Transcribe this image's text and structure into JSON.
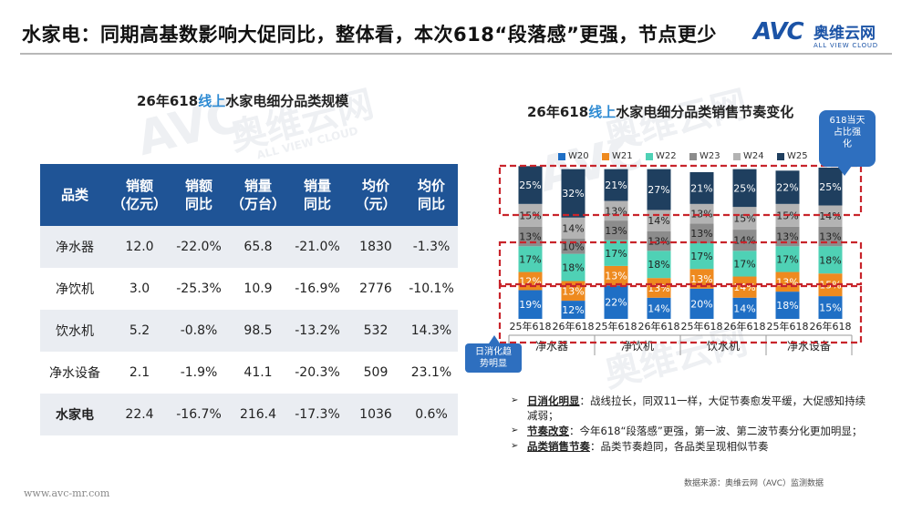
{
  "header": {
    "title": "水家电：同期高基数影响大促同比，整体看，本次618“段落感”更强，节点更少",
    "logo_mark": "AVC",
    "logo_cn": "奥维云网",
    "logo_en": "ALL VIEW CLOUD"
  },
  "watermark": {
    "mark": "AVC",
    "cn": "奥维云网",
    "en": "ALL VIEW CLOUD"
  },
  "colors": {
    "header_blue": "#1f5496",
    "accent_blue": "#2e8bd3",
    "dash_red": "#c8242b"
  },
  "left": {
    "title_pre": "26年618",
    "title_hl": "线上",
    "title_post": "水家电细分品类规模",
    "columns": [
      "品类",
      "销额\n（亿元）",
      "销额\n同比",
      "销量\n（万台）",
      "销量\n同比",
      "均价（元）",
      "均价\n同比"
    ],
    "rows": [
      [
        "净水器",
        "12.0",
        "-22.0%",
        "65.8",
        "-21.0%",
        "1830",
        "-1.3%"
      ],
      [
        "净饮机",
        "3.0",
        "-25.3%",
        "10.9",
        "-16.9%",
        "2776",
        "-10.1%"
      ],
      [
        "饮水机",
        "5.2",
        "-0.8%",
        "98.5",
        "-13.2%",
        "532",
        "14.3%"
      ],
      [
        "净水设备",
        "2.1",
        "-1.9%",
        "41.1",
        "-20.3%",
        "509",
        "23.1%"
      ],
      [
        "水家电",
        "22.4",
        "-16.7%",
        "216.4",
        "-17.3%",
        "1036",
        "0.6%"
      ]
    ]
  },
  "footer_url": "www.avc-mr.com",
  "right": {
    "title_pre": "26年618",
    "title_hl": "线上",
    "title_post": "水家电细分品类销售节奏变化",
    "callout_top": "618当天\n占比强\n化",
    "callout_bottom": "日消化趋\n势明显",
    "bullets": [
      {
        "label": "日消化明显",
        "text": "：战线拉长，同双11一样，大促节奏愈发平缓，大促感知持续减弱；"
      },
      {
        "label": "节奏改变",
        "text": "：今年618“段落感”更强，第一波、第二波节奏分化更加明显；"
      },
      {
        "label": "品类销售节奏",
        "text": "：品类节奏趋同，各品类呈现相似节奏"
      }
    ],
    "source": "数据来源：奥维云网（AVC）监测数据"
  },
  "chart_data": {
    "type": "bar",
    "stacked": true,
    "percent": true,
    "categories": [
      "25年618",
      "26年618",
      "25年618",
      "26年618",
      "25年618",
      "26年618",
      "25年618",
      "26年618"
    ],
    "groups": [
      "净水器",
      "净饮机",
      "饮水机",
      "净水设备"
    ],
    "series": [
      {
        "name": "W20",
        "color": "#1f6fc5",
        "values": [
          19,
          12,
          22,
          14,
          20,
          14,
          18,
          15
        ]
      },
      {
        "name": "W21",
        "color": "#ee8a1f",
        "values": [
          12,
          13,
          13,
          13,
          13,
          14,
          13,
          15
        ]
      },
      {
        "name": "W22",
        "color": "#4fd1b5",
        "values": [
          17,
          18,
          17,
          18,
          17,
          17,
          17,
          18
        ]
      },
      {
        "name": "W23",
        "color": "#8c8c8c",
        "values": [
          13,
          10,
          13,
          13,
          13,
          14,
          13,
          13
        ]
      },
      {
        "name": "W24",
        "color": "#b3b3b3",
        "values": [
          15,
          14,
          13,
          14,
          13,
          15,
          15,
          14
        ]
      },
      {
        "name": "W25",
        "color": "#1f3f5f",
        "values": [
          25,
          32,
          21,
          27,
          21,
          25,
          22,
          25
        ]
      }
    ],
    "ylim": [
      0,
      100
    ],
    "legend_position": "top"
  }
}
